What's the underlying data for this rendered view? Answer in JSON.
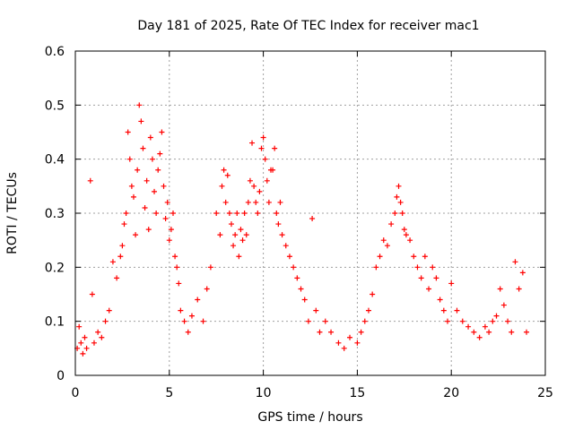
{
  "chart_data": {
    "type": "scatter",
    "title": "Day 181 of 2025, Rate Of TEC Index for receiver mac1",
    "xlabel": "GPS time / hours",
    "ylabel": "ROTI / TECUs",
    "xlim": [
      0,
      25
    ],
    "ylim": [
      0,
      0.6
    ],
    "xticks": [
      "0",
      "5",
      "10",
      "15",
      "20",
      "25"
    ],
    "yticks": [
      "0",
      "0.1",
      "0.2",
      "0.3",
      "0.4",
      "0.5",
      "0.6"
    ],
    "grid": true,
    "legend": "none",
    "marker": "plus",
    "color": "#ff0000",
    "series": [
      {
        "x": [
          0.1,
          0.2,
          0.3,
          0.4,
          0.5,
          0.6,
          0.8,
          0.9,
          1.0,
          1.2,
          1.4,
          1.6,
          1.8,
          2.0,
          2.2,
          2.4,
          2.5,
          2.6,
          2.7,
          2.8,
          2.9,
          3.0,
          3.1,
          3.2,
          3.3,
          3.4,
          3.5,
          3.6,
          3.7,
          3.8,
          3.9,
          4.0,
          4.1,
          4.2,
          4.3,
          4.4,
          4.5,
          4.6,
          4.7,
          4.8,
          4.9,
          5.0,
          5.1,
          5.2,
          5.3,
          5.4,
          5.5,
          5.6,
          5.8,
          6.0,
          6.2,
          6.5,
          6.8,
          7.0,
          7.2,
          7.5,
          7.7,
          7.8,
          7.9,
          8.0,
          8.1,
          8.2,
          8.3,
          8.4,
          8.5,
          8.6,
          8.7,
          8.8,
          8.9,
          9.0,
          9.1,
          9.2,
          9.3,
          9.4,
          9.5,
          9.6,
          9.7,
          9.8,
          9.9,
          10.0,
          10.1,
          10.2,
          10.3,
          10.4,
          10.5,
          10.6,
          10.7,
          10.8,
          10.9,
          11.0,
          11.2,
          11.4,
          11.6,
          11.8,
          12.0,
          12.2,
          12.4,
          12.6,
          12.8,
          13.0,
          13.3,
          13.6,
          14.0,
          14.3,
          14.6,
          15.0,
          15.2,
          15.4,
          15.6,
          15.8,
          16.0,
          16.2,
          16.4,
          16.6,
          16.8,
          17.0,
          17.1,
          17.2,
          17.3,
          17.4,
          17.5,
          17.6,
          17.8,
          18.0,
          18.2,
          18.4,
          18.6,
          18.8,
          19.0,
          19.2,
          19.4,
          19.6,
          19.8,
          20.0,
          20.3,
          20.6,
          20.9,
          21.2,
          21.5,
          21.8,
          22.0,
          22.2,
          22.4,
          22.6,
          22.8,
          23.0,
          23.2,
          23.4,
          23.6,
          23.8,
          24.0
        ],
        "y": [
          0.05,
          0.09,
          0.06,
          0.04,
          0.07,
          0.05,
          0.36,
          0.15,
          0.06,
          0.08,
          0.07,
          0.1,
          0.12,
          0.21,
          0.18,
          0.22,
          0.24,
          0.28,
          0.3,
          0.45,
          0.4,
          0.35,
          0.33,
          0.26,
          0.38,
          0.5,
          0.47,
          0.42,
          0.31,
          0.36,
          0.27,
          0.44,
          0.4,
          0.34,
          0.3,
          0.38,
          0.41,
          0.45,
          0.35,
          0.29,
          0.32,
          0.25,
          0.27,
          0.3,
          0.22,
          0.2,
          0.17,
          0.12,
          0.1,
          0.08,
          0.11,
          0.14,
          0.1,
          0.16,
          0.2,
          0.3,
          0.26,
          0.35,
          0.38,
          0.32,
          0.37,
          0.3,
          0.28,
          0.24,
          0.26,
          0.3,
          0.22,
          0.27,
          0.25,
          0.3,
          0.26,
          0.32,
          0.36,
          0.43,
          0.35,
          0.32,
          0.3,
          0.34,
          0.42,
          0.44,
          0.4,
          0.36,
          0.32,
          0.38,
          0.38,
          0.42,
          0.3,
          0.28,
          0.32,
          0.26,
          0.24,
          0.22,
          0.2,
          0.18,
          0.16,
          0.14,
          0.1,
          0.29,
          0.12,
          0.08,
          0.1,
          0.08,
          0.06,
          0.05,
          0.07,
          0.06,
          0.08,
          0.1,
          0.12,
          0.15,
          0.2,
          0.22,
          0.25,
          0.24,
          0.28,
          0.3,
          0.33,
          0.35,
          0.32,
          0.3,
          0.27,
          0.26,
          0.25,
          0.22,
          0.2,
          0.18,
          0.22,
          0.16,
          0.2,
          0.18,
          0.14,
          0.12,
          0.1,
          0.17,
          0.12,
          0.1,
          0.09,
          0.08,
          0.07,
          0.09,
          0.08,
          0.1,
          0.11,
          0.16,
          0.13,
          0.1,
          0.08,
          0.21,
          0.16,
          0.19,
          0.08
        ]
      }
    ]
  }
}
